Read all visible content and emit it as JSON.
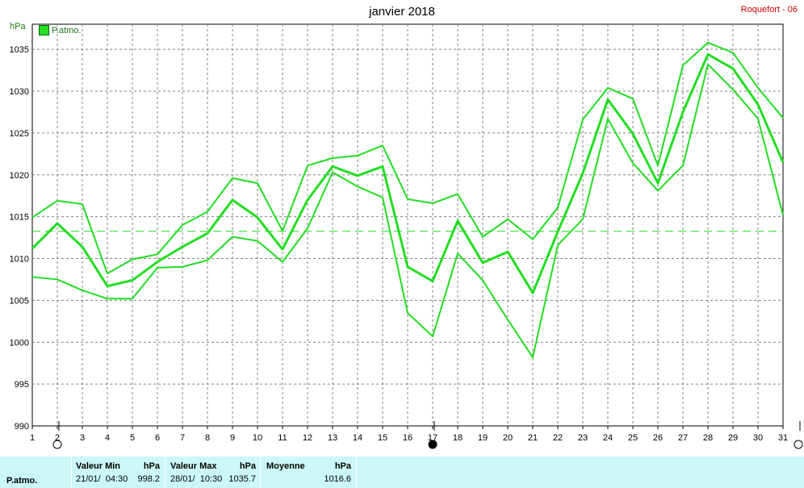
{
  "header": {
    "title": "janvier 2018",
    "station": "Roquefort - 06",
    "unit": "hPa",
    "legend_label": "P.atmo.",
    "legend_color": "#22dd22"
  },
  "chart_data": {
    "type": "line",
    "title": "janvier 2018",
    "ylabel": "hPa",
    "x": [
      1,
      2,
      3,
      4,
      5,
      6,
      7,
      8,
      9,
      10,
      11,
      12,
      13,
      14,
      15,
      16,
      17,
      18,
      19,
      20,
      21,
      22,
      23,
      24,
      25,
      26,
      27,
      28,
      29,
      30,
      31
    ],
    "ylim": [
      990,
      1038
    ],
    "yticks": [
      990,
      995,
      1000,
      1005,
      1010,
      1015,
      1020,
      1025,
      1030,
      1035
    ],
    "grid": true,
    "line_color": "#22dd22",
    "series": [
      {
        "name": "max",
        "values": [
          1014.9,
          1016.9,
          1016.5,
          1008.2,
          1009.9,
          1010.5,
          1014.0,
          1015.6,
          1019.6,
          1019.0,
          1013.3,
          1021.1,
          1022.0,
          1022.3,
          1023.5,
          1017.1,
          1016.6,
          1017.7,
          1012.6,
          1014.7,
          1012.3,
          1016.1,
          1026.6,
          1030.4,
          1029.1,
          1021.1,
          1033.1,
          1035.8,
          1034.6,
          1030.4,
          1026.8
        ]
      },
      {
        "name": "moyenne",
        "values": [
          1011.2,
          1014.2,
          1011.4,
          1006.7,
          1007.4,
          1009.6,
          1011.4,
          1013.0,
          1017.0,
          1014.9,
          1011.1,
          1017.0,
          1021.0,
          1019.9,
          1021.0,
          1009.0,
          1007.3,
          1014.5,
          1009.5,
          1010.8,
          1005.9,
          1013.2,
          1020.2,
          1029.0,
          1024.9,
          1019.0,
          1027.5,
          1034.4,
          1032.7,
          1028.4,
          1021.5
        ]
      },
      {
        "name": "min",
        "values": [
          1007.8,
          1007.5,
          1006.2,
          1005.2,
          1005.2,
          1008.9,
          1009.0,
          1009.8,
          1012.6,
          1012.1,
          1009.6,
          1013.6,
          1020.3,
          1018.6,
          1017.3,
          1003.5,
          1000.7,
          1010.6,
          1007.4,
          1002.7,
          998.2,
          1011.6,
          1014.7,
          1026.7,
          1021.4,
          1018.1,
          1021.1,
          1033.2,
          1030.2,
          1026.7,
          1015.2
        ]
      }
    ],
    "reference_line": 1013.25
  },
  "stats": {
    "row_label": "P.atmo.",
    "min_header": "Valeur Min",
    "min_unit": "hPa",
    "min_date": "21/01/  04:30",
    "min_value": "998.2",
    "max_header": "Valeur Max",
    "max_unit": "hPa",
    "max_date": "28/01/  10:30",
    "max_value": "1035.7",
    "avg_header": "Moyenne",
    "avg_unit": "hPa",
    "avg_value": "1016.6"
  }
}
